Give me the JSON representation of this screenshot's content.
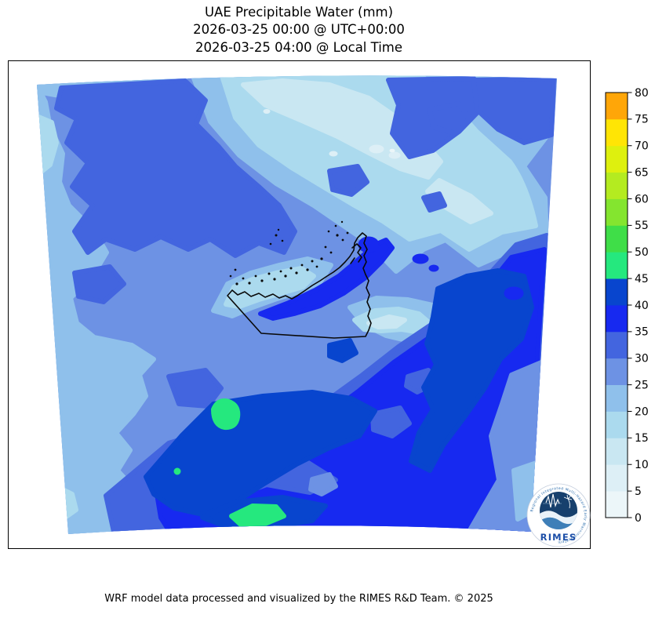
{
  "title": {
    "line1": "UAE Precipitable Water (mm)",
    "line2": "2026-03-25 00:00 @ UTC+00:00",
    "line3": "2026-03-25 04:00 @ Local Time"
  },
  "footer": {
    "credit": "WRF model data processed and visualized by the RIMES R&D Team. © 2025"
  },
  "colorbar": {
    "levels": [
      0,
      5,
      10,
      15,
      20,
      25,
      30,
      35,
      40,
      45,
      50,
      55,
      60,
      65,
      70,
      75,
      80
    ],
    "colors": [
      "#ECF6F9",
      "#DDEFF6",
      "#C9E7F2",
      "#ABDAEE",
      "#8FC0EB",
      "#6D92E4",
      "#4365DF",
      "#1729F0",
      "#0845CE",
      "#25E87E",
      "#3FDE48",
      "#84E52F",
      "#B4EB20",
      "#DEF00E",
      "#FFE505",
      "#FFA608"
    ]
  },
  "logo": {
    "organization": "RIMES",
    "ring_text": "Regional Integrated Multi-Hazard Early Warning System",
    "label": "RIMES"
  },
  "chart_data": {
    "type": "heatmap",
    "title": "UAE Precipitable Water (mm)",
    "units": "mm",
    "timestamp_utc": "2026-03-25 00:00 @ UTC+00:00",
    "timestamp_local": "2026-03-25 04:00 @ Local Time",
    "levels": [
      0,
      5,
      10,
      15,
      20,
      25,
      30,
      35,
      40,
      45,
      50,
      55,
      60,
      65,
      70,
      75,
      80
    ],
    "level_colors": [
      "#ECF6F9",
      "#DDEFF6",
      "#C9E7F2",
      "#ABDAEE",
      "#8FC0EB",
      "#6D92E4",
      "#4365DF",
      "#1729F0",
      "#0845CE",
      "#25E87E",
      "#3FDE48",
      "#84E52F",
      "#B4EB20",
      "#DEF00E",
      "#FFE505",
      "#FFA608"
    ],
    "legend_position": "right",
    "colorbar_range": [
      0,
      80
    ],
    "region": "United Arab Emirates and surrounding Arabian Gulf / Gulf of Oman",
    "observations": [
      {
        "area": "upper-left quadrant (Arabian Gulf, northwest)",
        "value_mm": "25-35"
      },
      {
        "area": "diagonal dry band across upper-centre to upper-right",
        "value_mm": "5-20"
      },
      {
        "area": "top-right corner",
        "value_mm": "30-35"
      },
      {
        "area": "northern UAE coast / Strait of Hormuz band",
        "value_mm": "35-40"
      },
      {
        "area": "Gulf of Oman along eastern edge",
        "value_mm": "40-45"
      },
      {
        "area": "southern interior, bottom-centre and bottom-right",
        "value_mm": "35-45"
      },
      {
        "area": "localized maxima south-southwest of the UAE",
        "value_mm": "45-50"
      },
      {
        "area": "western edge strip",
        "value_mm": "20-25"
      }
    ]
  }
}
